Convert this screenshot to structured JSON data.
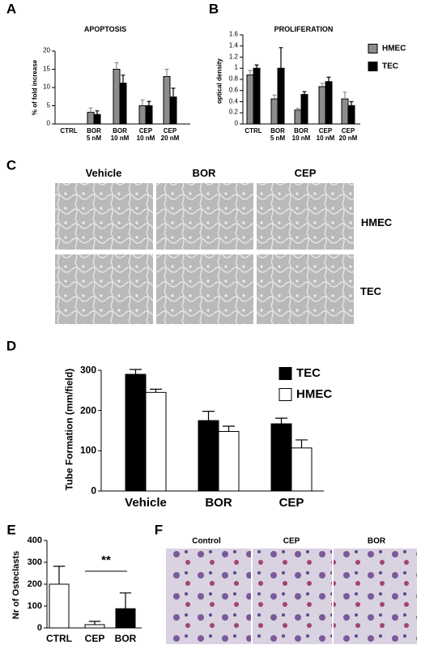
{
  "panels": [
    "A",
    "B",
    "C",
    "D",
    "E",
    "F"
  ],
  "chart_data": [
    {
      "type": "bar",
      "title": "APOPTOSIS",
      "y_label": "% of fold increase",
      "categories": [
        "CTRL",
        "BOR\n5 nM",
        "BOR\n10 nM",
        "CEP\n10 nM",
        "CEP\n20 nM"
      ],
      "series": [
        {
          "name": "HMEC",
          "color": "#8c8c8c",
          "values": [
            null,
            3.2,
            15,
            5,
            13
          ],
          "errors": [
            null,
            1.2,
            1.8,
            1.6,
            2
          ]
        },
        {
          "name": "TEC",
          "color": "#000000",
          "values": [
            null,
            2.6,
            11.2,
            5,
            7.4
          ],
          "errors": [
            null,
            1,
            2.2,
            1.2,
            2.4
          ]
        }
      ],
      "ylim": [
        0,
        20
      ],
      "yticks": [
        0,
        5,
        10,
        15,
        20
      ]
    },
    {
      "type": "bar",
      "title": "PROLIFERATION",
      "y_label": "optical density",
      "categories": [
        "CTRL",
        "BOR\n5 nM",
        "BOR\n10 nM",
        "CEP\n10 nM",
        "CEP\n20 nM"
      ],
      "series": [
        {
          "name": "HMEC",
          "color": "#8c8c8c",
          "values": [
            0.88,
            0.45,
            0.25,
            0.67,
            0.45
          ],
          "errors": [
            0.08,
            0.07,
            0.03,
            0.06,
            0.12
          ]
        },
        {
          "name": "TEC",
          "color": "#000000",
          "values": [
            1.0,
            1.0,
            0.53,
            0.76,
            0.33
          ],
          "errors": [
            0.06,
            0.37,
            0.05,
            0.08,
            0.07
          ]
        }
      ],
      "ylim": [
        0,
        1.6
      ],
      "yticks": [
        0,
        0.2,
        0.4,
        0.6,
        0.8,
        1,
        1.2,
        1.4,
        1.6
      ],
      "legend": "right"
    },
    {
      "type": "bar",
      "y_label": "Tube Formation (mm/field)",
      "categories": [
        "Vehicle",
        "BOR",
        "CEP"
      ],
      "series": [
        {
          "name": "TEC",
          "color": "#000000",
          "values": [
            290,
            175,
            167
          ],
          "errors": [
            12,
            23,
            14
          ]
        },
        {
          "name": "HMEC",
          "color": "#ffffff",
          "values": [
            245,
            148,
            107
          ],
          "errors": [
            8,
            13,
            20
          ]
        }
      ],
      "ylim": [
        0,
        300
      ],
      "yticks": [
        0,
        100,
        200,
        300
      ],
      "legend": "upper right"
    },
    {
      "type": "bar",
      "y_label": "Nr of Osteclasts",
      "categories": [
        "CTRL",
        "CEP",
        "BOR"
      ],
      "values": [
        200,
        15,
        88
      ],
      "errors": [
        82,
        15,
        72
      ],
      "colors": [
        "#ffffff",
        "#ffffff",
        "#000000"
      ],
      "annotation": "**",
      "ylim": [
        0,
        400
      ],
      "yticks": [
        0,
        100,
        200,
        300,
        400
      ]
    }
  ],
  "micrographs": {
    "columns": [
      "Vehicle",
      "BOR",
      "CEP"
    ],
    "rows": [
      "HMEC",
      "TEC"
    ]
  },
  "staining": {
    "columns": [
      "Control",
      "CEP",
      "BOR"
    ]
  }
}
